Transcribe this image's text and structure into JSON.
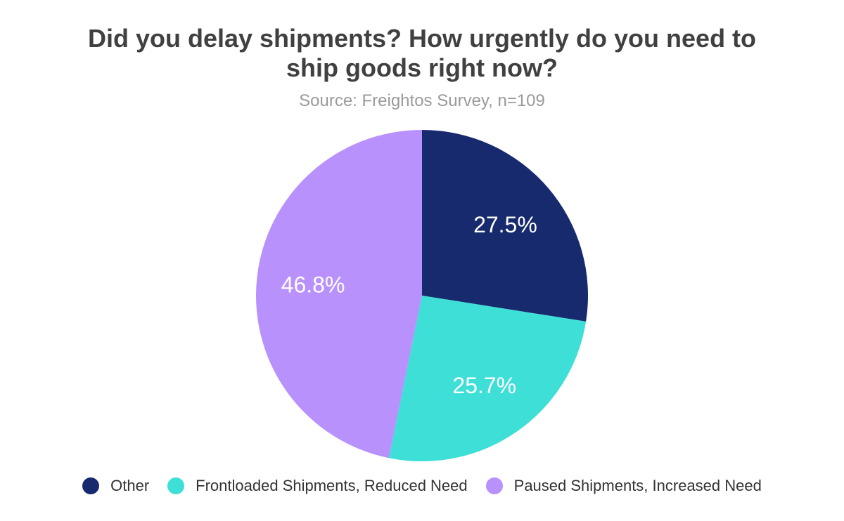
{
  "chart_data": {
    "type": "pie",
    "title_lines": [
      "Did you delay shipments? How urgently do you need to",
      "ship goods right now?"
    ],
    "subtitle": "Source: Freightos Survey, n=109",
    "slices": [
      {
        "label": "Other",
        "value": 27.5,
        "display": "27.5%",
        "color": "#172a6e"
      },
      {
        "label": "Frontloaded Shipments, Reduced Need",
        "value": 25.7,
        "display": "25.7%",
        "color": "#3ddfd7"
      },
      {
        "label": "Paused Shipments, Increased Need",
        "value": 46.8,
        "display": "46.8%",
        "color": "#b891fd"
      }
    ],
    "start_position": "top, clockwise",
    "legend_position": "bottom"
  }
}
